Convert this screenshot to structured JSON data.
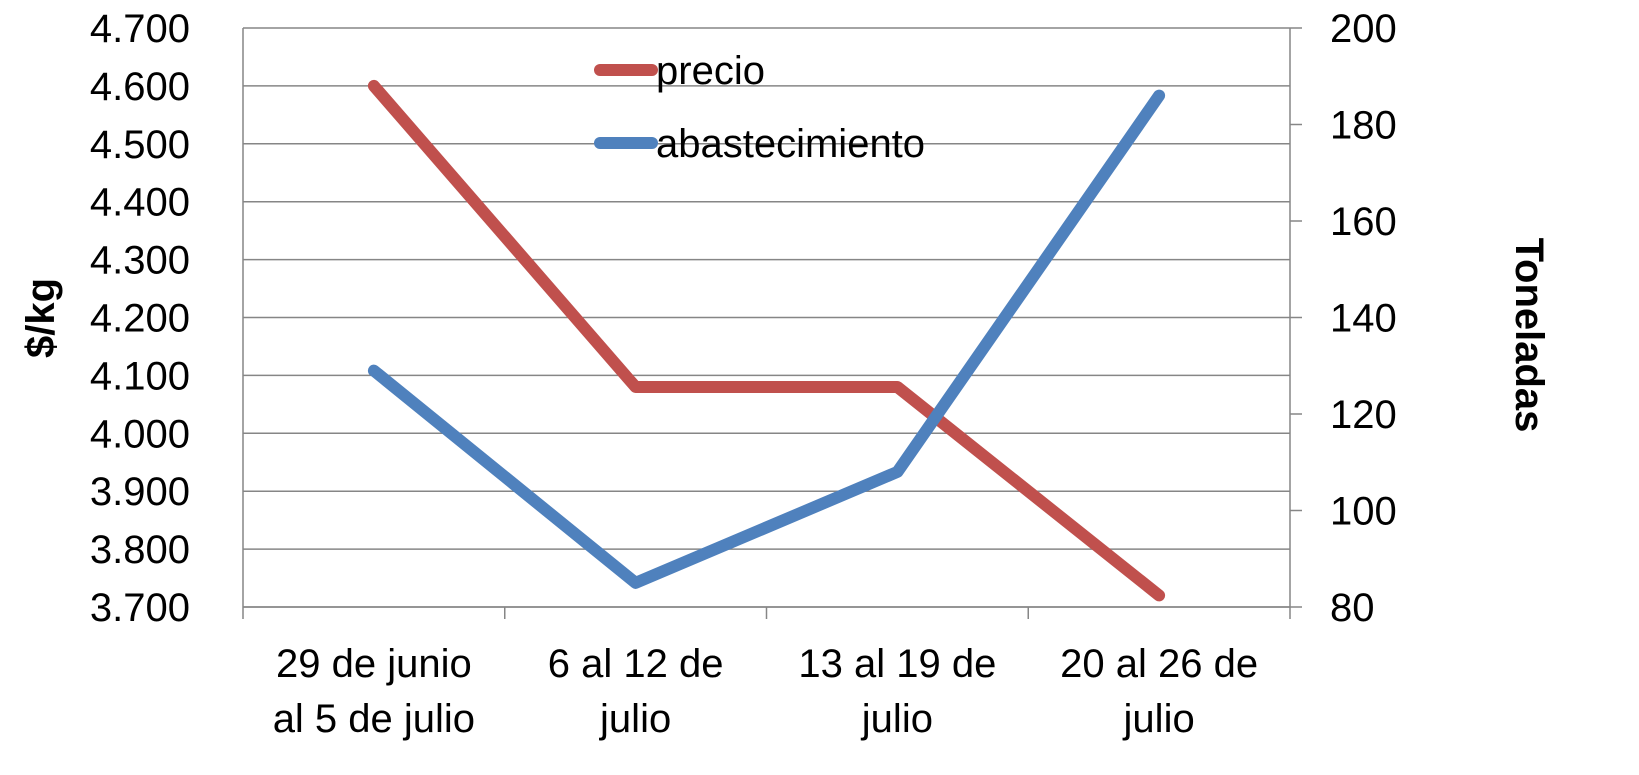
{
  "chart_data": {
    "type": "line",
    "categories": [
      [
        "29 de junio",
        "al 5 de julio"
      ],
      [
        "6 al 12 de",
        "julio"
      ],
      [
        "13 al 19 de",
        "julio"
      ],
      [
        "20 al 26 de",
        "julio"
      ]
    ],
    "y_left": {
      "label": "$/kg",
      "range": [
        3700,
        4700
      ],
      "step": 100,
      "ticks": [
        "3.700",
        "3.800",
        "3.900",
        "4.000",
        "4.100",
        "4.200",
        "4.300",
        "4.400",
        "4.500",
        "4.600",
        "4.700"
      ]
    },
    "y_right": {
      "label": "Toneladas",
      "range": [
        80,
        200
      ],
      "step": 20,
      "ticks": [
        "80",
        "100",
        "120",
        "140",
        "160",
        "180",
        "200"
      ]
    },
    "series": [
      {
        "name": "precio",
        "axis": "left",
        "color": "#C0504D",
        "values": [
          4600,
          4080,
          4080,
          3720
        ]
      },
      {
        "name": "abastecimiento",
        "axis": "right",
        "color": "#4F81BD",
        "values": [
          129,
          85,
          108,
          186
        ]
      }
    ],
    "gridlines": true,
    "legend_position": "top-center"
  }
}
